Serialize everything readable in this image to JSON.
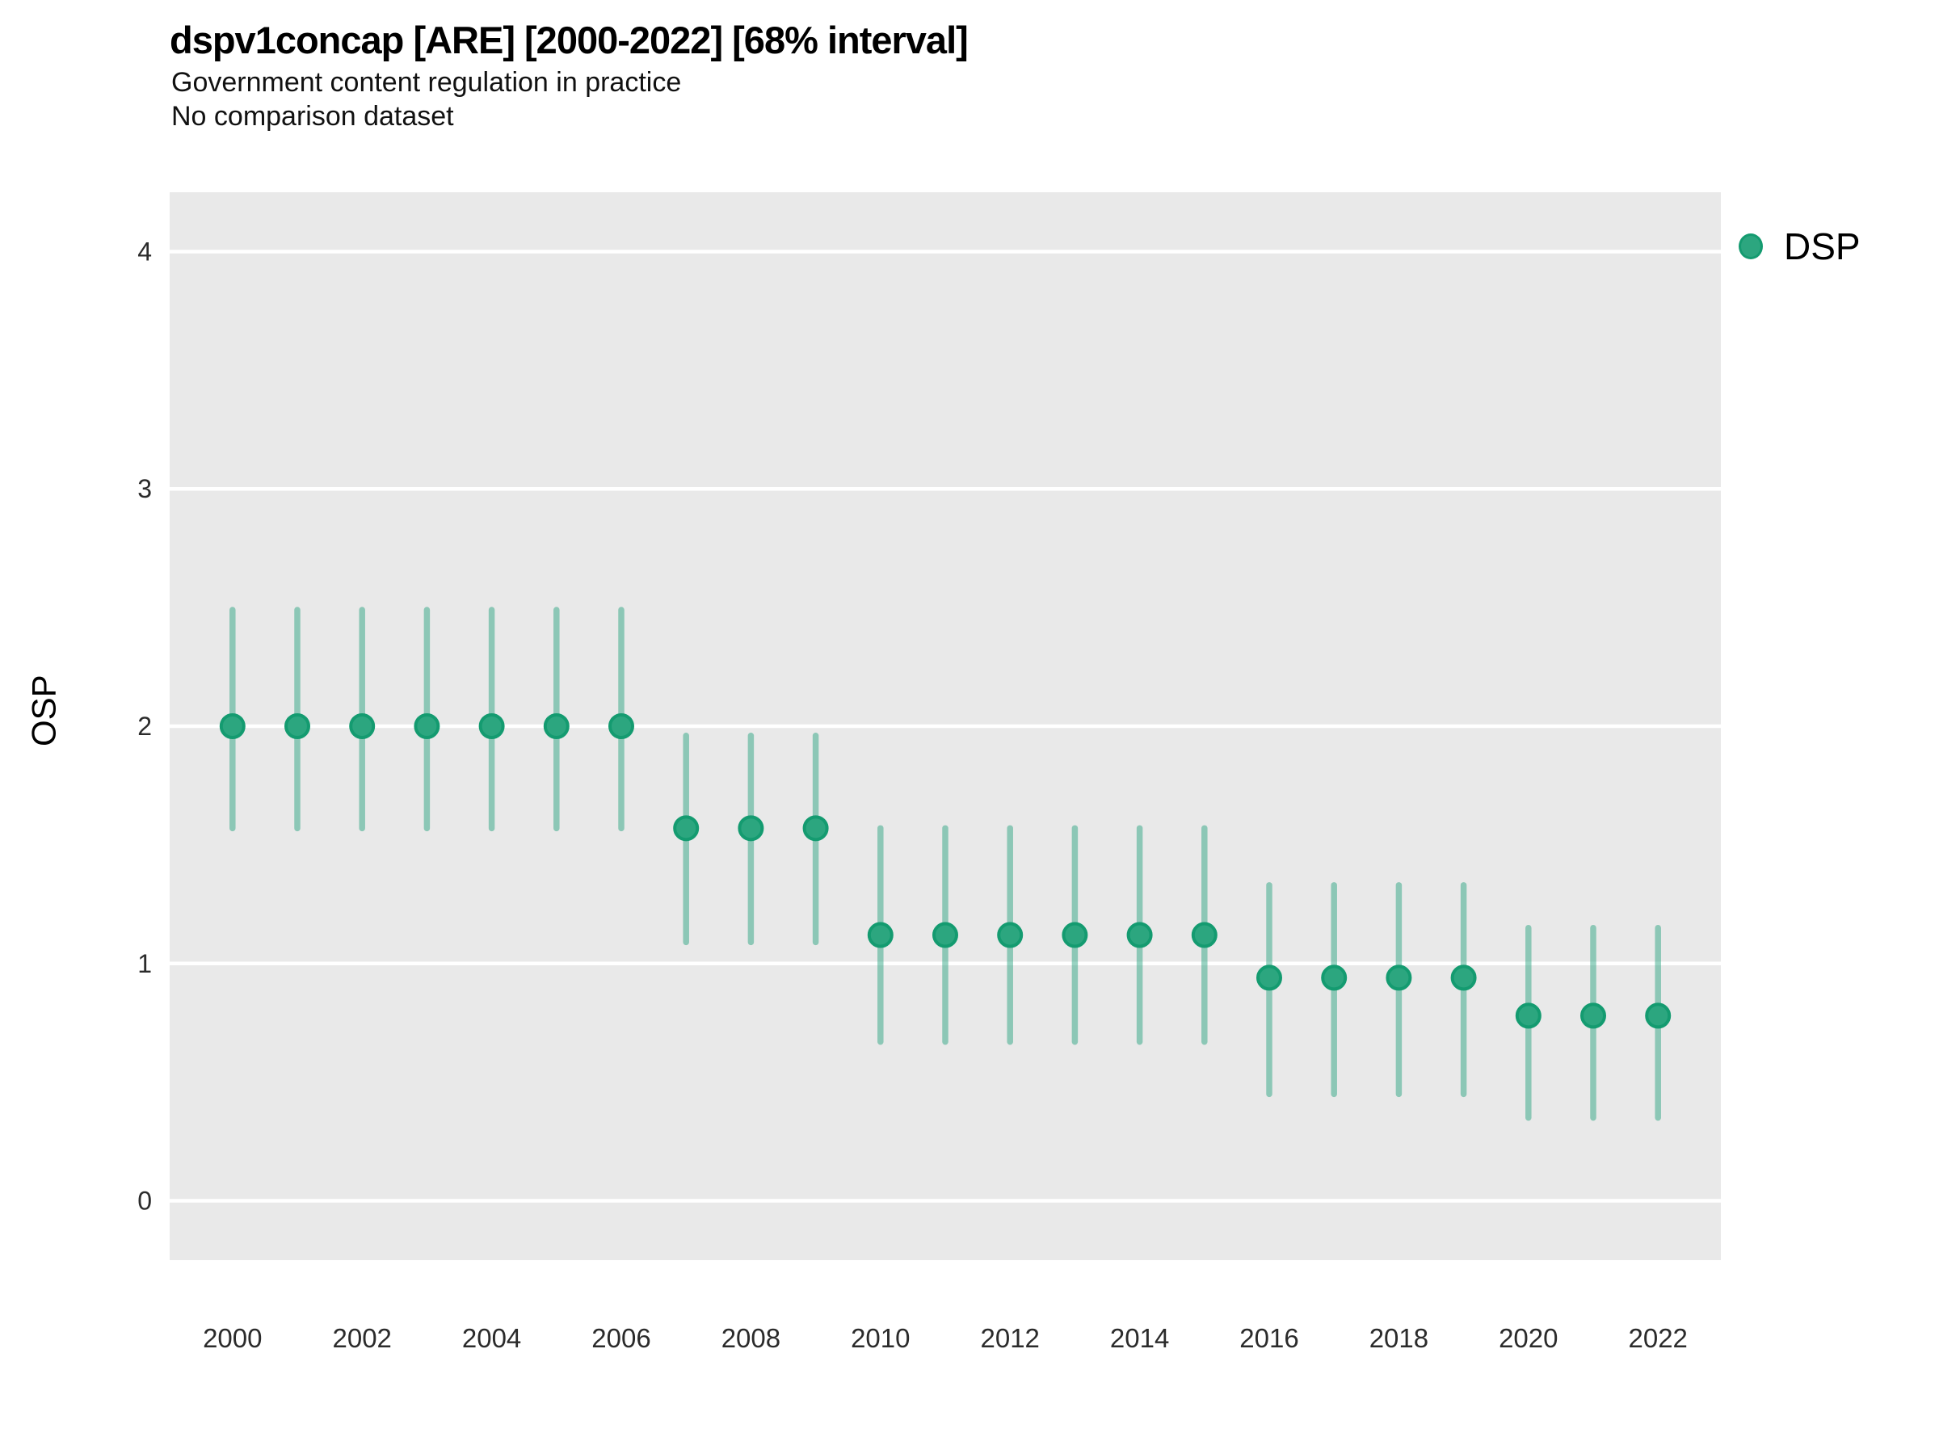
{
  "header": {
    "title": "dspv1concap [ARE] [2000-2022] [68% interval]",
    "subtitle1": "Government content regulation in practice",
    "subtitle2": "No comparison dataset"
  },
  "axes": {
    "y_label": "OSP"
  },
  "legend": {
    "label": "DSP"
  },
  "style": {
    "panel_bg": "#E9E9E9",
    "grid_color": "#FFFFFF",
    "point_fill": "#2CA67F",
    "point_stroke": "#149B70",
    "errorbar_color": "rgba(27,158,119,0.45)",
    "tick_text_color": "#2b2b2b"
  },
  "chart_data": {
    "type": "scatter",
    "title": "dspv1concap [ARE] [2000-2022] [68% interval]",
    "subtitle": [
      "Government content regulation in practice",
      "No comparison dataset"
    ],
    "xlabel": "",
    "ylabel": "OSP",
    "interval": "68%",
    "grid": "major-horizontal-only",
    "legend_position": "right-top",
    "xlim": [
      1999.03,
      2022.97
    ],
    "ylim": [
      -0.25,
      4.25
    ],
    "y_ticks": [
      0,
      1,
      2,
      3,
      4
    ],
    "x_ticks": [
      2000,
      2002,
      2004,
      2006,
      2008,
      2010,
      2012,
      2014,
      2016,
      2018,
      2020,
      2022
    ],
    "series": [
      {
        "name": "DSP",
        "points": [
          {
            "year": 2000,
            "value": 2.0,
            "lo": 1.57,
            "hi": 2.49
          },
          {
            "year": 2001,
            "value": 2.0,
            "lo": 1.57,
            "hi": 2.49
          },
          {
            "year": 2002,
            "value": 2.0,
            "lo": 1.57,
            "hi": 2.49
          },
          {
            "year": 2003,
            "value": 2.0,
            "lo": 1.57,
            "hi": 2.49
          },
          {
            "year": 2004,
            "value": 2.0,
            "lo": 1.57,
            "hi": 2.49
          },
          {
            "year": 2005,
            "value": 2.0,
            "lo": 1.57,
            "hi": 2.49
          },
          {
            "year": 2006,
            "value": 2.0,
            "lo": 1.57,
            "hi": 2.49
          },
          {
            "year": 2007,
            "value": 1.57,
            "lo": 1.09,
            "hi": 1.96
          },
          {
            "year": 2008,
            "value": 1.57,
            "lo": 1.09,
            "hi": 1.96
          },
          {
            "year": 2009,
            "value": 1.57,
            "lo": 1.09,
            "hi": 1.96
          },
          {
            "year": 2010,
            "value": 1.12,
            "lo": 0.67,
            "hi": 1.57
          },
          {
            "year": 2011,
            "value": 1.12,
            "lo": 0.67,
            "hi": 1.57
          },
          {
            "year": 2012,
            "value": 1.12,
            "lo": 0.67,
            "hi": 1.57
          },
          {
            "year": 2013,
            "value": 1.12,
            "lo": 0.67,
            "hi": 1.57
          },
          {
            "year": 2014,
            "value": 1.12,
            "lo": 0.67,
            "hi": 1.57
          },
          {
            "year": 2015,
            "value": 1.12,
            "lo": 0.67,
            "hi": 1.57
          },
          {
            "year": 2016,
            "value": 0.94,
            "lo": 0.45,
            "hi": 1.33
          },
          {
            "year": 2017,
            "value": 0.94,
            "lo": 0.45,
            "hi": 1.33
          },
          {
            "year": 2018,
            "value": 0.94,
            "lo": 0.45,
            "hi": 1.33
          },
          {
            "year": 2019,
            "value": 0.94,
            "lo": 0.45,
            "hi": 1.33
          },
          {
            "year": 2020,
            "value": 0.78,
            "lo": 0.35,
            "hi": 1.15
          },
          {
            "year": 2021,
            "value": 0.78,
            "lo": 0.35,
            "hi": 1.15
          },
          {
            "year": 2022,
            "value": 0.78,
            "lo": 0.35,
            "hi": 1.15
          }
        ]
      }
    ]
  }
}
